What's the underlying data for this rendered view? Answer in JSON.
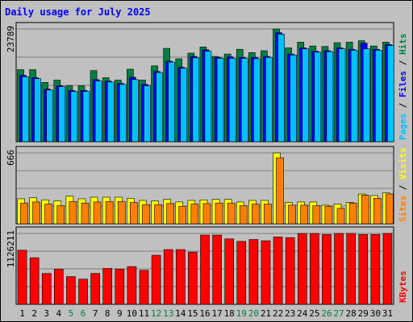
{
  "title": "Daily usage for July 2025",
  "colors": {
    "hits": "#008040",
    "files": "#0000ff",
    "pages": "#00c0ff",
    "visits": "#ffff00",
    "sites": "#ff8000",
    "kbytes": "#ff0000",
    "title": "#0000ff",
    "weekend_day": "#008040",
    "weekday_day": "#000000",
    "panel_bg": "#c0c0c0",
    "grid": "#808080"
  },
  "chart_data": [
    {
      "type": "bar",
      "title": "Daily usage for July 2025",
      "ylabel_top": "23789",
      "ylim": [
        0,
        23789
      ],
      "legend": [
        "Pages",
        "Files",
        "Hits"
      ],
      "legend_separator": "/",
      "categories": [
        "1",
        "2",
        "3",
        "4",
        "5",
        "6",
        "7",
        "8",
        "9",
        "10",
        "11",
        "12",
        "13",
        "14",
        "15",
        "16",
        "17",
        "18",
        "19",
        "20",
        "21",
        "22",
        "23",
        "24",
        "25",
        "26",
        "27",
        "28",
        "29",
        "30",
        "31"
      ],
      "series": [
        {
          "name": "Hits",
          "values": [
            15200,
            15200,
            12500,
            13000,
            11800,
            11800,
            15000,
            13500,
            13000,
            15300,
            13000,
            16000,
            19700,
            17500,
            18700,
            20000,
            18000,
            18500,
            19500,
            18800,
            19200,
            23789,
            19800,
            21000,
            20200,
            20100,
            20900,
            21000,
            21300,
            20200,
            21000
          ]
        },
        {
          "name": "Files",
          "values": [
            14000,
            13500,
            11100,
            11800,
            10800,
            10800,
            13100,
            12800,
            12300,
            13600,
            12100,
            14800,
            17000,
            15700,
            18000,
            19400,
            17800,
            17900,
            17800,
            17800,
            18000,
            23000,
            18500,
            19800,
            19100,
            19200,
            19800,
            19500,
            20800,
            19500,
            20500
          ]
        },
        {
          "name": "Pages",
          "values": [
            13700,
            13300,
            10900,
            11600,
            10600,
            10600,
            12800,
            12600,
            12100,
            13100,
            11800,
            14600,
            16800,
            15500,
            17700,
            19100,
            17600,
            17600,
            17600,
            17500,
            17800,
            22700,
            18300,
            19600,
            18900,
            19000,
            19600,
            19300,
            19600,
            19300,
            20300
          ]
        }
      ]
    },
    {
      "type": "bar",
      "ylabel_top": "666",
      "ylim": [
        0,
        666
      ],
      "legend": [
        "Sites",
        "Visits"
      ],
      "legend_separator": "/",
      "categories": [
        "1",
        "2",
        "3",
        "4",
        "5",
        "6",
        "7",
        "8",
        "9",
        "10",
        "11",
        "12",
        "13",
        "14",
        "15",
        "16",
        "17",
        "18",
        "19",
        "20",
        "21",
        "22",
        "23",
        "24",
        "25",
        "26",
        "27",
        "28",
        "29",
        "30",
        "31"
      ],
      "series": [
        {
          "name": "Visits",
          "values": [
            235,
            245,
            225,
            215,
            260,
            235,
            250,
            250,
            250,
            240,
            220,
            215,
            230,
            205,
            220,
            225,
            230,
            230,
            205,
            220,
            220,
            666,
            200,
            205,
            205,
            175,
            185,
            200,
            280,
            265,
            290
          ]
        },
        {
          "name": "Sites",
          "values": [
            195,
            205,
            185,
            170,
            210,
            195,
            205,
            210,
            210,
            200,
            180,
            180,
            190,
            165,
            185,
            190,
            195,
            195,
            170,
            185,
            185,
            620,
            175,
            175,
            170,
            165,
            145,
            195,
            270,
            240,
            280
          ]
        }
      ]
    },
    {
      "type": "bar",
      "ylabel_top": "1126211",
      "ylim": [
        0,
        1126211
      ],
      "legend": [
        "KBytes"
      ],
      "categories": [
        "1",
        "2",
        "3",
        "4",
        "5",
        "6",
        "7",
        "8",
        "9",
        "10",
        "11",
        "12",
        "13",
        "14",
        "15",
        "16",
        "17",
        "18",
        "19",
        "20",
        "21",
        "22",
        "23",
        "24",
        "25",
        "26",
        "27",
        "28",
        "29",
        "30",
        "31"
      ],
      "series": [
        {
          "name": "KBytes",
          "values": [
            860000,
            740000,
            490000,
            560000,
            440000,
            400000,
            490000,
            570000,
            560000,
            600000,
            540000,
            780000,
            870000,
            870000,
            830000,
            1100000,
            1100000,
            1040000,
            1000000,
            1030000,
            1010000,
            1070000,
            1060000,
            1126211,
            1126211,
            1110000,
            1126211,
            1126211,
            1110000,
            1110000,
            1126211
          ]
        }
      ]
    }
  ],
  "weekend_days": [
    "5",
    "6",
    "12",
    "13",
    "19",
    "20",
    "26",
    "27"
  ]
}
